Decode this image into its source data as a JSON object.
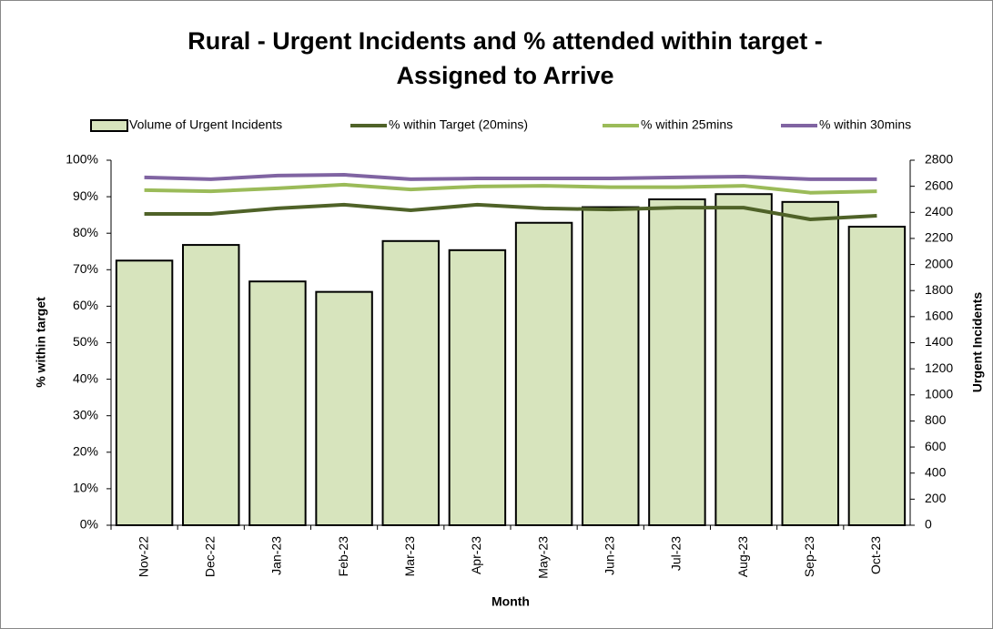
{
  "chart_data": {
    "type": "bar-line",
    "title": [
      "Rural - Urgent Incidents and % attended within target -",
      "Assigned to Arrive"
    ],
    "xlabel": "Month",
    "ylabel": "% within target",
    "y2label": "Urgent Incidents",
    "categories": [
      "Nov-22",
      "Dec-22",
      "Jan-23",
      "Feb-23",
      "Mar-23",
      "Apr-23",
      "May-23",
      "Jun-23",
      "Jul-23",
      "Aug-23",
      "Sep-23",
      "Oct-23"
    ],
    "series": [
      {
        "name": "Volume of Urgent Incidents",
        "type": "bar",
        "axis": "y2",
        "color": "#d7e4bd",
        "values": [
          2030,
          2150,
          1870,
          1790,
          2180,
          2110,
          2320,
          2440,
          2500,
          2540,
          2480,
          2290
        ]
      },
      {
        "name": "% within Target (20mins)",
        "type": "line",
        "color": "#4f6228",
        "values": [
          85.3,
          85.3,
          86.8,
          87.8,
          86.3,
          87.8,
          86.8,
          86.5,
          87.0,
          87.0,
          83.8,
          84.8
        ]
      },
      {
        "name": "% within 25mins",
        "type": "line",
        "color": "#9bbb59",
        "values": [
          91.8,
          91.5,
          92.3,
          93.3,
          92.0,
          92.8,
          93.0,
          92.6,
          92.6,
          93.0,
          91.1,
          91.5
        ]
      },
      {
        "name": "% within 30mins",
        "type": "line",
        "color": "#8064a2",
        "values": [
          95.3,
          94.8,
          95.8,
          96.0,
          94.8,
          95.0,
          95.0,
          95.0,
          95.3,
          95.5,
          94.8,
          94.8
        ]
      }
    ],
    "ylim": [
      0,
      100
    ],
    "yticks": [
      {
        "value": 0,
        "label": "0%"
      },
      {
        "value": 10,
        "label": "10%"
      },
      {
        "value": 20,
        "label": "20%"
      },
      {
        "value": 30,
        "label": "30%"
      },
      {
        "value": 40,
        "label": "40%"
      },
      {
        "value": 50,
        "label": "50%"
      },
      {
        "value": 60,
        "label": "60%"
      },
      {
        "value": 70,
        "label": "70%"
      },
      {
        "value": 80,
        "label": "80%"
      },
      {
        "value": 90,
        "label": "90%"
      },
      {
        "value": 100,
        "label": "100%"
      }
    ],
    "y2lim": [
      0,
      2800
    ],
    "y2ticks": [
      0,
      200,
      400,
      600,
      800,
      1000,
      1200,
      1400,
      1600,
      1800,
      2000,
      2200,
      2400,
      2600,
      2800
    ],
    "legend": "top"
  }
}
